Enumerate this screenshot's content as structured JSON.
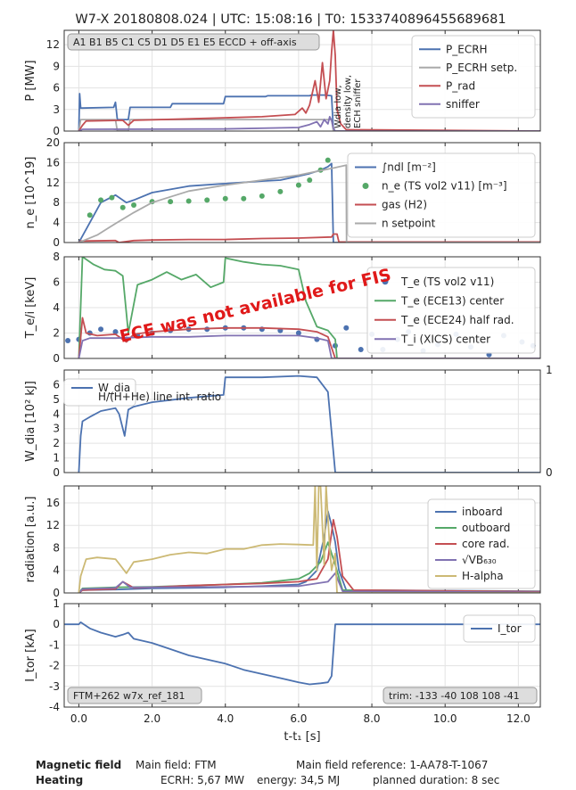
{
  "title": "W7-X 20180808.024 | UTC: 15:08:16 | T0: 1533740896455689681",
  "xaxis": {
    "label": "t-t₁ [s]",
    "ticks": [
      "0.0",
      "2.0",
      "4.0",
      "6.0",
      "8.0",
      "10.0",
      "12.0"
    ]
  },
  "colors": {
    "blue": "#4c72b0",
    "gray": "#aaaaaa",
    "red": "#c44e52",
    "purple": "#8172b2",
    "green": "#55a868",
    "olive": "#ccb974",
    "grid": "#e3e3e3"
  },
  "chart_data": [
    {
      "type": "line",
      "ylabel": "P [MW]",
      "xlim": [
        -0.4,
        12.6
      ],
      "ylim": [
        0,
        14
      ],
      "yticks": [
        "0",
        "3",
        "6",
        "9",
        "12"
      ],
      "annotation": "A1 B1 B5 C1 C5 D1 D5 E1 E5 ECCD + off-axis",
      "vertical_note": [
        "Wdia low,",
        "density low,",
        "ECH sniffer"
      ],
      "series": [
        {
          "name": "P_ECRH",
          "x": [
            0.0,
            0.02,
            0.05,
            0.1,
            0.95,
            1.0,
            1.05,
            1.35,
            1.4,
            2.5,
            2.55,
            3.95,
            4.0,
            5.1,
            5.15,
            6.3,
            6.35,
            6.7,
            6.9,
            6.95,
            12.6
          ],
          "y": [
            0,
            5.2,
            3.2,
            3.2,
            3.3,
            4.0,
            1.6,
            1.6,
            3.3,
            3.3,
            3.8,
            3.8,
            4.8,
            4.8,
            4.9,
            4.9,
            5.0,
            5.0,
            4.9,
            0,
            0
          ]
        },
        {
          "name": "P_ECRH setp.",
          "x": [
            0.0,
            0.05,
            1.0,
            1.05,
            1.35,
            1.4,
            6.9,
            6.95,
            12.6
          ],
          "y": [
            0,
            1.6,
            1.6,
            0,
            0,
            1.6,
            1.6,
            0,
            0
          ]
        },
        {
          "name": "P_rad",
          "x": [
            0.0,
            0.1,
            0.2,
            1.2,
            1.35,
            1.5,
            3.0,
            5.0,
            5.9,
            6.1,
            6.2,
            6.3,
            6.45,
            6.55,
            6.65,
            6.75,
            6.85,
            6.9,
            6.95,
            7.0,
            7.05,
            7.15,
            7.3,
            12.6
          ],
          "y": [
            0,
            0.8,
            1.4,
            1.5,
            0.8,
            1.5,
            1.7,
            2.0,
            2.3,
            3.2,
            2.5,
            3.6,
            7.0,
            4.0,
            9.5,
            4.5,
            7.0,
            11.0,
            14.0,
            10.5,
            3.0,
            1.0,
            0.2,
            0.0
          ]
        },
        {
          "name": "sniffer",
          "x": [
            0.0,
            0.1,
            4.0,
            6.0,
            6.3,
            6.5,
            6.6,
            6.7,
            6.8,
            6.85,
            6.9,
            6.95,
            7.0,
            12.6
          ],
          "y": [
            0,
            0.25,
            0.3,
            0.5,
            0.9,
            1.3,
            0.6,
            1.6,
            1.0,
            2.0,
            1.5,
            0.4,
            0,
            0
          ]
        }
      ]
    },
    {
      "type": "line",
      "ylabel": "n_e [10^19]",
      "xlim": [
        -0.4,
        12.6
      ],
      "ylim": [
        0,
        20
      ],
      "yticks": [
        "0",
        "4",
        "8",
        "12",
        "16",
        "20"
      ],
      "series": [
        {
          "name": "∫ndl [m⁻²]",
          "x": [
            0.0,
            0.3,
            0.6,
            1.0,
            1.3,
            1.5,
            2.0,
            3.0,
            4.0,
            5.0,
            5.5,
            6.0,
            6.3,
            6.6,
            6.8,
            6.9,
            6.95,
            12.6
          ],
          "y": [
            0,
            4.0,
            8.0,
            9.5,
            8.0,
            8.5,
            10.0,
            11.3,
            11.8,
            12.3,
            12.5,
            13.3,
            13.8,
            14.5,
            15.2,
            15.8,
            0,
            0
          ]
        },
        {
          "name": "n_e (TS vol2 v11) [m⁻³]",
          "x": [
            0.3,
            0.6,
            0.9,
            1.2,
            1.5,
            2.0,
            2.5,
            3.0,
            3.5,
            4.0,
            4.5,
            5.0,
            5.5,
            6.0,
            6.3,
            6.6,
            6.8
          ],
          "y": [
            5.5,
            8.5,
            9.0,
            7.0,
            7.5,
            8.2,
            8.2,
            8.3,
            8.5,
            8.8,
            8.8,
            9.3,
            10.2,
            11.5,
            12.5,
            14.5,
            16.5
          ]
        },
        {
          "name": "gas (H2)",
          "x": [
            0.0,
            0.05,
            1.0,
            1.1,
            1.5,
            2.0,
            3.0,
            4.0,
            5.0,
            6.0,
            6.9,
            6.95,
            7.05,
            7.1,
            12.6
          ],
          "y": [
            0,
            0.3,
            0.4,
            0.0,
            0.4,
            0.5,
            0.6,
            0.6,
            0.8,
            0.9,
            1.1,
            1.7,
            1.7,
            0.1,
            0.1
          ]
        },
        {
          "name": "n setpoint",
          "x": [
            0.0,
            0.1,
            0.5,
            1.0,
            1.5,
            2.0,
            3.0,
            4.0,
            5.0,
            6.0,
            7.0,
            7.3,
            7.31,
            12.6
          ],
          "y": [
            0,
            0.3,
            1.5,
            3.8,
            6.0,
            8.0,
            10.3,
            11.5,
            12.5,
            13.5,
            15.0,
            15.5,
            0,
            0
          ]
        }
      ]
    },
    {
      "type": "line",
      "ylabel": "T_e/i [keV]",
      "xlim": [
        -0.4,
        12.6
      ],
      "ylim": [
        0,
        8
      ],
      "yticks": [
        "0",
        "2",
        "4",
        "6",
        "8"
      ],
      "annotation": "ECE was not available for FIS",
      "series": [
        {
          "name": "T_e (TS vol2 v11)",
          "x": [
            -0.3,
            0.0,
            0.3,
            0.6,
            1.0,
            1.3,
            1.6,
            2.0,
            2.5,
            3.0,
            3.5,
            4.0,
            4.5,
            5.0,
            5.5,
            6.0,
            6.5,
            7.0,
            7.3,
            7.7,
            8.0,
            8.3,
            8.7,
            9.0,
            9.4,
            9.8,
            10.3,
            10.7,
            11.2,
            11.6,
            12.1,
            12.4
          ],
          "y": [
            1.4,
            1.5,
            2.0,
            2.3,
            2.1,
            1.5,
            1.8,
            2.0,
            2.2,
            2.3,
            2.3,
            2.4,
            2.4,
            2.3,
            2.2,
            2.0,
            1.5,
            1.0,
            2.4,
            0.7,
            1.9,
            0.7,
            1.5,
            2.1,
            0.6,
            1.1,
            1.9,
            0.9,
            0.3,
            1.8,
            1.3,
            1.0
          ]
        },
        {
          "name": "T_e (ECE13) center",
          "x": [
            0.0,
            0.1,
            0.4,
            0.7,
            1.0,
            1.2,
            1.35,
            1.6,
            2.0,
            2.4,
            2.8,
            3.2,
            3.6,
            3.95,
            4.0,
            4.5,
            5.0,
            5.5,
            6.0,
            6.2,
            6.5,
            6.8,
            7.0,
            7.05,
            12.6
          ],
          "y": [
            0,
            8.0,
            7.4,
            7.0,
            6.9,
            6.5,
            2.0,
            5.8,
            6.2,
            6.8,
            6.2,
            6.6,
            5.6,
            6.0,
            7.9,
            7.6,
            7.4,
            7.3,
            7.0,
            4.5,
            2.5,
            2.2,
            1.5,
            0,
            0
          ]
        },
        {
          "name": "T_e (ECE24) half rad.",
          "x": [
            0.0,
            0.1,
            0.2,
            0.5,
            1.0,
            1.3,
            1.5,
            2.0,
            3.0,
            4.0,
            5.0,
            6.0,
            6.5,
            6.8,
            7.0,
            12.6
          ],
          "y": [
            0,
            3.2,
            2.0,
            1.8,
            1.9,
            1.3,
            1.9,
            2.1,
            2.3,
            2.4,
            2.4,
            2.3,
            2.1,
            1.7,
            0,
            0
          ]
        },
        {
          "name": "T_i (XICS) center",
          "x": [
            0.0,
            0.1,
            0.3,
            1.0,
            2.0,
            3.0,
            4.0,
            5.0,
            6.0,
            6.5,
            6.8,
            6.9,
            12.6
          ],
          "y": [
            0,
            1.4,
            1.6,
            1.6,
            1.7,
            1.7,
            1.8,
            1.8,
            1.8,
            1.6,
            1.4,
            0,
            0
          ]
        }
      ]
    },
    {
      "type": "line",
      "ylabel": "W_dia [10² kJ]",
      "xlim": [
        -0.4,
        12.6
      ],
      "ylim": [
        0,
        7
      ],
      "yticks": [
        "0",
        "1",
        "2",
        "3",
        "4",
        "5",
        "6"
      ],
      "y2ticks": [
        "0",
        "1"
      ],
      "series": [
        {
          "name": "W_dia",
          "x": [
            0.0,
            0.05,
            0.1,
            0.3,
            0.6,
            1.0,
            1.1,
            1.25,
            1.35,
            1.5,
            2.0,
            3.0,
            3.95,
            4.0,
            5.0,
            6.0,
            6.5,
            6.8,
            7.0,
            12.6
          ],
          "y": [
            0,
            2.5,
            3.5,
            3.8,
            4.2,
            4.4,
            4.0,
            2.5,
            4.3,
            4.5,
            4.8,
            5.1,
            5.3,
            6.5,
            6.5,
            6.6,
            6.5,
            5.5,
            0,
            0
          ]
        },
        {
          "name": "H/(H+He) line int. ratio",
          "x": [
            0.0,
            0.05,
            6.8,
            6.85,
            6.95,
            7.05,
            12.6
          ],
          "y": [
            0,
            6.9,
            6.9,
            6.6,
            6.9,
            0,
            0
          ]
        }
      ]
    },
    {
      "type": "line",
      "ylabel": "radiation [a.u.]",
      "xlim": [
        -0.4,
        12.6
      ],
      "ylim": [
        0,
        19
      ],
      "yticks": [
        "0",
        "4",
        "8",
        "12",
        "16"
      ],
      "series": [
        {
          "name": "inboard",
          "x": [
            0.0,
            0.1,
            1.0,
            2.0,
            3.0,
            4.0,
            5.0,
            6.0,
            6.2,
            6.5,
            6.7,
            6.8,
            6.9,
            7.0,
            7.1,
            7.3,
            12.6
          ],
          "y": [
            0,
            0.5,
            0.6,
            0.8,
            0.9,
            1.0,
            1.2,
            1.5,
            2.0,
            4.0,
            10.0,
            14.5,
            12.0,
            9.0,
            4.0,
            0.5,
            0.3
          ]
        },
        {
          "name": "outboard",
          "x": [
            0.0,
            0.1,
            1.0,
            2.0,
            3.0,
            4.0,
            5.0,
            6.0,
            6.3,
            6.6,
            6.8,
            7.0,
            7.2,
            12.6
          ],
          "y": [
            0,
            0.8,
            1.0,
            1.1,
            1.3,
            1.5,
            1.8,
            2.5,
            3.5,
            5.5,
            9.0,
            5.0,
            0.5,
            0.2
          ]
        },
        {
          "name": "core rad.",
          "x": [
            0.0,
            0.1,
            1.0,
            1.2,
            1.5,
            2.0,
            3.0,
            4.0,
            5.0,
            6.0,
            6.5,
            6.8,
            6.95,
            7.05,
            7.2,
            7.5,
            12.6
          ],
          "y": [
            0,
            0.5,
            0.7,
            2.0,
            0.9,
            1.0,
            1.3,
            1.5,
            1.7,
            2.0,
            2.5,
            6.0,
            13.0,
            10.0,
            3.0,
            0.5,
            0.2
          ]
        },
        {
          "name": "√VB₆₃₀",
          "x": [
            0.0,
            0.1,
            1.0,
            1.2,
            1.4,
            2.0,
            4.0,
            6.0,
            6.8,
            7.0,
            7.2,
            12.6
          ],
          "y": [
            0,
            0.7,
            0.9,
            2.0,
            1.0,
            1.0,
            1.1,
            1.2,
            2.0,
            3.5,
            0.3,
            0.1
          ]
        },
        {
          "name": "H-alpha",
          "x": [
            0.0,
            0.05,
            0.2,
            0.5,
            1.0,
            1.1,
            1.3,
            1.5,
            2.0,
            2.5,
            3.0,
            3.5,
            4.0,
            4.5,
            5.0,
            5.5,
            6.0,
            6.4,
            6.45,
            6.5,
            6.55,
            6.6,
            6.7,
            6.75,
            6.85,
            6.9,
            7.0,
            7.05,
            12.6
          ],
          "y": [
            0,
            3.0,
            6.0,
            6.3,
            6.0,
            5.2,
            3.5,
            5.5,
            6.0,
            6.8,
            7.2,
            7.0,
            7.8,
            7.8,
            8.5,
            8.7,
            8.6,
            8.5,
            19.0,
            4.0,
            19.0,
            19.0,
            5.0,
            19.0,
            8.0,
            4.0,
            7.0,
            0,
            0
          ]
        }
      ]
    },
    {
      "type": "line",
      "ylabel": "I_tor [kA]",
      "xlim": [
        -0.4,
        12.6
      ],
      "ylim": [
        -4,
        1
      ],
      "yticks": [
        "-4",
        "-3",
        "-2",
        "-1",
        "0",
        "1"
      ],
      "annotations": [
        "FTM+262 w7x_ref_181",
        "trim: -133 -40 108 108 -41"
      ],
      "series": [
        {
          "name": "I_tor",
          "x": [
            -0.4,
            0.0,
            0.05,
            0.3,
            0.6,
            1.0,
            1.2,
            1.35,
            1.5,
            2.0,
            2.5,
            3.0,
            3.5,
            4.0,
            4.5,
            5.0,
            5.5,
            6.0,
            6.3,
            6.6,
            6.8,
            6.9,
            7.0,
            12.6
          ],
          "y": [
            0,
            0,
            0.1,
            -0.2,
            -0.4,
            -0.6,
            -0.5,
            -0.4,
            -0.7,
            -0.9,
            -1.2,
            -1.5,
            -1.7,
            -1.9,
            -2.2,
            -2.4,
            -2.6,
            -2.8,
            -2.9,
            -2.85,
            -2.8,
            -2.5,
            0,
            0
          ]
        }
      ]
    }
  ],
  "footer": {
    "magnetic_field_label": "Magnetic field",
    "main_field": "Main field:  FTM",
    "main_field_reference": "Main field reference:  1-AA78-T-1067",
    "heating_label": "Heating",
    "ecrh": "ECRH:  5,67 MW",
    "energy": "energy:  34,5 MJ",
    "planned_duration": "planned duration:  8 sec"
  }
}
